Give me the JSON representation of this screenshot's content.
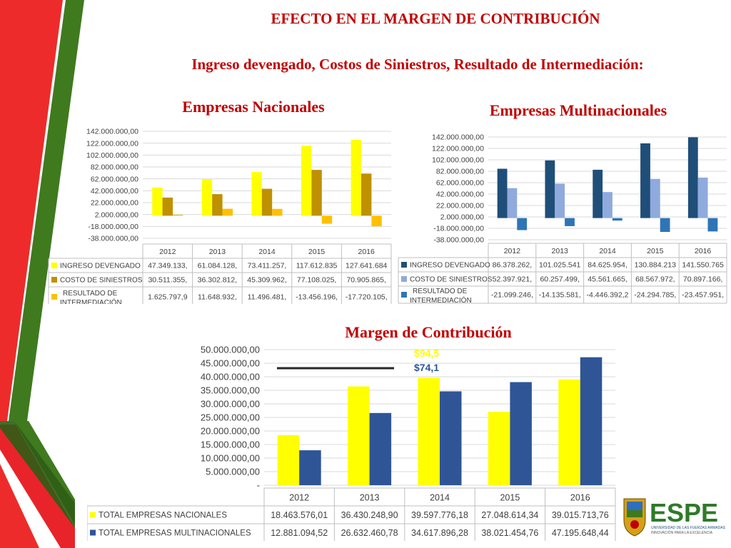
{
  "slide": {
    "title": "EFECTO EN EL MARGEN DE CONTRIBUCIÓN",
    "subtitle": "Ingreso devengado, Costos de Siniestros, Resultado de Intermediación:",
    "nac_title": "Empresas Nacionales",
    "mult_title": "Empresas Multinacionales",
    "margin_title": "Margen de Contribución"
  },
  "colors": {
    "title_red": "#c00000",
    "stripe_red": "#ee2b2b",
    "stripe_green": "#3f7a1e",
    "yellow": "#ffff00",
    "dark_gold": "#bf9000",
    "gold": "#ffc000",
    "navy": "#1f4e79",
    "light_blue": "#8faadc",
    "mid_blue": "#2e75b6",
    "blue": "#2f5597"
  },
  "logo": {
    "text": "ESPE",
    "tagline_1": "UNIVERSIDAD DE LAS FUERZAS ARMADAS",
    "tagline_2": "INNOVACIÓN PARA LA EXCELENCIA"
  },
  "chart_data": [
    {
      "id": "nacionales",
      "type": "bar",
      "title": "Empresas Nacionales",
      "categories": [
        "2012",
        "2013",
        "2014",
        "2015",
        "2016"
      ],
      "y_ticks": [
        "142.000.000,00",
        "122.000.000,00",
        "102.000.000,00",
        "82.000.000,00",
        "62.000.000,00",
        "42.000.000,00",
        "22.000.000,00",
        "2.000.000,00",
        "-18.000.000,00",
        "-38.000.000,00"
      ],
      "ylim": [
        -38000000,
        142000000
      ],
      "grid": true,
      "legend": "table-below",
      "series": [
        {
          "name": "INGRESO DEVENGADO",
          "color": "#ffff00",
          "values": [
            47349133,
            61084128,
            73411257,
            117612835,
            127641684
          ],
          "labels": [
            "47.349.133,",
            "61.084.128,",
            "73.411.257,",
            "117.612.835",
            "127.641.684"
          ]
        },
        {
          "name": "COSTO DE SINIESTROS",
          "color": "#bf9000",
          "values": [
            30511355,
            36302812,
            45309962,
            77108025,
            70905865
          ],
          "labels": [
            "30.511.355,",
            "36.302.812,",
            "45.309.962,",
            "77.108.025,",
            "70.905.865,"
          ]
        },
        {
          "name": "RESULTADO DE INTERMEDIACIÓN",
          "name_lines": [
            "RESULTADO DE",
            "INTERMEDIACIÓN"
          ],
          "color": "#ffc000",
          "values": [
            1625797.9,
            11648932,
            11496481,
            -13456196,
            -17720105
          ],
          "labels": [
            "1.625.797,9",
            "11.648.932,",
            "11.496.481,",
            "-13.456.196,",
            "-17.720.105,"
          ]
        }
      ]
    },
    {
      "id": "multinacionales",
      "type": "bar",
      "title": "Empresas Multinacionales",
      "categories": [
        "2012",
        "2013",
        "2014",
        "2015",
        "2016"
      ],
      "y_ticks": [
        "142.000.000,00",
        "122.000.000,00",
        "102.000.000,00",
        "82.000.000,00",
        "62.000.000,00",
        "42.000.000,00",
        "22.000.000,00",
        "2.000.000,00",
        "-18.000.000,00",
        "-38.000.000,00"
      ],
      "ylim": [
        -38000000,
        142000000
      ],
      "grid": true,
      "legend": "table-below",
      "series": [
        {
          "name": "INGRESO DEVENGADO",
          "color": "#1f4e79",
          "values": [
            86378262,
            101025541,
            84625954,
            130884213,
            141550765
          ],
          "labels": [
            "86.378.262,",
            "101.025.541",
            "84.625.954,",
            "130.884.213",
            "141.550.765"
          ]
        },
        {
          "name": "COSTO DE SINIESTROS",
          "color": "#8faadc",
          "values": [
            52397921,
            60257499,
            45561665,
            68567972,
            70897166
          ],
          "labels": [
            "52.397.921,",
            "60.257.499,",
            "45.561.665,",
            "68.567.972,",
            "70.897.166,"
          ]
        },
        {
          "name": "RESULTADO DE INTERMEDIACIÓN",
          "name_lines": [
            "RESULTADO DE",
            "INTERMEDIACIÓN"
          ],
          "color": "#2e75b6",
          "values": [
            -21099246,
            -14135581,
            -4446392.2,
            -24294785,
            -23457951
          ],
          "labels": [
            "-21.099.246,",
            "-14.135.581,",
            "-4.446.392,2",
            "-24.294.785,",
            "-23.457.951,"
          ]
        }
      ]
    },
    {
      "id": "margen",
      "type": "bar",
      "title": "Margen de Contribución",
      "categories": [
        "2012",
        "2013",
        "2014",
        "2015",
        "2016"
      ],
      "y_ticks": [
        "50.000.000,00",
        "45.000.000,00",
        "40.000.000,00",
        "35.000.000,00",
        "30.000.000,00",
        "25.000.000,00",
        "20.000.000,00",
        "15.000.000,00",
        "10.000.000,00",
        "5.000.000,00",
        "-"
      ],
      "ylim": [
        0,
        50000000
      ],
      "grid": true,
      "legend": "table-below",
      "annotations": [
        {
          "text": "$94,5",
          "color": "#ffff00"
        },
        {
          "text": "$74,1",
          "color": "#2f5597"
        }
      ],
      "series": [
        {
          "name": "TOTAL EMPRESAS NACIONALES",
          "color": "#ffff00",
          "values": [
            18463576.01,
            36430248.9,
            39597776.18,
            27048614.34,
            39015713.76
          ],
          "labels": [
            "18.463.576,01",
            "36.430.248,90",
            "39.597.776,18",
            "27.048.614,34",
            "39.015.713,76"
          ]
        },
        {
          "name": "TOTAL EMPRESAS MULTINACIONALES",
          "color": "#2f5597",
          "values": [
            12881094.52,
            26632460.78,
            34617896.28,
            38021454.76,
            47195648.44
          ],
          "labels": [
            "12.881.094,52",
            "26.632.460,78",
            "34.617.896,28",
            "38.021.454,76",
            "47.195.648,44"
          ]
        }
      ]
    }
  ]
}
